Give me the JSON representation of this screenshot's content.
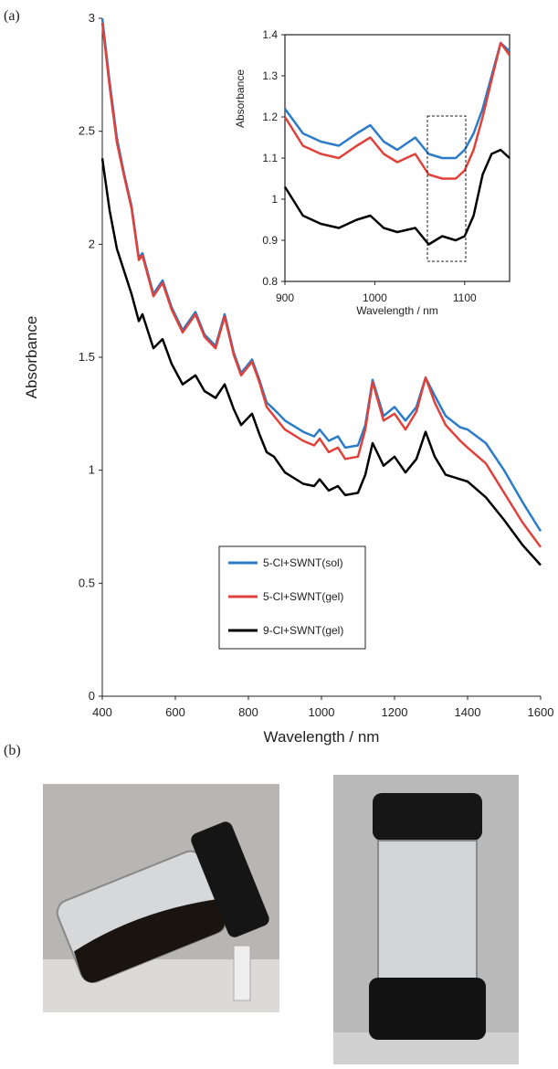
{
  "panel_labels": [
    "(a)",
    "(b)"
  ],
  "chart_data": [
    {
      "type": "line",
      "x_label": "Wavelength / nm",
      "y_label": "Absorbance",
      "x": [
        400,
        420,
        440,
        460,
        480,
        500,
        510,
        540,
        565,
        590,
        620,
        655,
        680,
        710,
        735,
        760,
        780,
        810,
        830,
        850,
        870,
        900,
        950,
        980,
        995,
        1020,
        1045,
        1065,
        1100,
        1120,
        1140,
        1170,
        1200,
        1230,
        1260,
        1285,
        1310,
        1340,
        1380,
        1400,
        1450,
        1500,
        1550,
        1600
      ],
      "series": [
        {
          "name": "5-Cl+SWNT(sol)",
          "color": "#2b7bc8",
          "values": [
            3.0,
            2.72,
            2.47,
            2.31,
            2.17,
            1.94,
            1.96,
            1.78,
            1.84,
            1.72,
            1.62,
            1.7,
            1.6,
            1.55,
            1.69,
            1.52,
            1.43,
            1.49,
            1.4,
            1.3,
            1.27,
            1.22,
            1.17,
            1.15,
            1.18,
            1.13,
            1.15,
            1.1,
            1.11,
            1.2,
            1.4,
            1.24,
            1.28,
            1.22,
            1.28,
            1.41,
            1.33,
            1.24,
            1.19,
            1.18,
            1.12,
            1.0,
            0.86,
            0.73
          ]
        },
        {
          "name": "5-Cl+SWNT(gel)",
          "color": "#e0413a",
          "values": [
            2.98,
            2.7,
            2.45,
            2.3,
            2.16,
            1.93,
            1.95,
            1.77,
            1.83,
            1.71,
            1.61,
            1.69,
            1.59,
            1.54,
            1.68,
            1.51,
            1.42,
            1.48,
            1.39,
            1.28,
            1.24,
            1.18,
            1.13,
            1.11,
            1.14,
            1.08,
            1.1,
            1.05,
            1.06,
            1.18,
            1.39,
            1.22,
            1.25,
            1.18,
            1.26,
            1.41,
            1.3,
            1.2,
            1.13,
            1.1,
            1.03,
            0.9,
            0.77,
            0.66
          ]
        },
        {
          "name": "9-Cl+SWNT(gel)",
          "color": "#000000",
          "values": [
            2.38,
            2.15,
            1.98,
            1.88,
            1.78,
            1.66,
            1.69,
            1.54,
            1.58,
            1.47,
            1.38,
            1.42,
            1.35,
            1.32,
            1.38,
            1.27,
            1.2,
            1.25,
            1.16,
            1.08,
            1.06,
            0.99,
            0.94,
            0.93,
            0.96,
            0.91,
            0.93,
            0.89,
            0.9,
            0.98,
            1.12,
            1.02,
            1.06,
            0.99,
            1.05,
            1.17,
            1.06,
            0.98,
            0.96,
            0.95,
            0.88,
            0.78,
            0.67,
            0.58
          ]
        }
      ],
      "xlim": [
        400,
        1600
      ],
      "xticks": [
        400,
        600,
        800,
        1000,
        1200,
        1400,
        1600
      ],
      "ylim": [
        0,
        3
      ],
      "yticks": [
        0,
        0.5,
        1,
        1.5,
        2,
        2.5,
        3
      ],
      "legend": true
    },
    {
      "type": "line",
      "x_label": "Wavelength / nm",
      "y_label": "Absorbance",
      "x": [
        900,
        920,
        940,
        960,
        980,
        995,
        1010,
        1025,
        1045,
        1060,
        1075,
        1090,
        1100,
        1110,
        1120,
        1130,
        1140,
        1150
      ],
      "series": [
        {
          "name": "5-Cl+SWNT(sol)",
          "color": "#2b7bc8",
          "values": [
            1.22,
            1.16,
            1.14,
            1.13,
            1.16,
            1.18,
            1.14,
            1.12,
            1.15,
            1.11,
            1.1,
            1.1,
            1.12,
            1.16,
            1.22,
            1.3,
            1.38,
            1.36
          ]
        },
        {
          "name": "5-Cl+SWNT(gel)",
          "color": "#e0413a",
          "values": [
            1.2,
            1.13,
            1.11,
            1.1,
            1.13,
            1.15,
            1.11,
            1.09,
            1.11,
            1.06,
            1.05,
            1.05,
            1.07,
            1.12,
            1.2,
            1.29,
            1.38,
            1.35
          ]
        },
        {
          "name": "9-Cl+SWNT(gel)",
          "color": "#000000",
          "values": [
            1.03,
            0.96,
            0.94,
            0.93,
            0.95,
            0.96,
            0.93,
            0.92,
            0.93,
            0.89,
            0.91,
            0.9,
            0.91,
            0.96,
            1.06,
            1.11,
            1.12,
            1.1
          ]
        }
      ],
      "xlim": [
        900,
        1150
      ],
      "xticks": [
        900,
        1000,
        1100
      ],
      "ylim": [
        0.8,
        1.4
      ],
      "yticks": [
        0.8,
        0.9,
        1,
        1.1,
        1.2,
        1.3,
        1.4
      ],
      "legend": false
    }
  ]
}
